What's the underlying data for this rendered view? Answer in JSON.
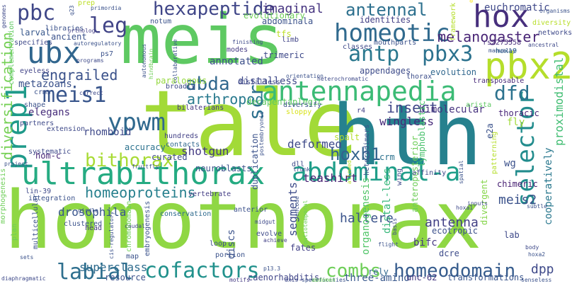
{
  "words": [
    {
      "text": "homothorax",
      "color": "#8fd744"
    },
    {
      "text": "tale",
      "color": "#a2da37"
    },
    {
      "text": "meis",
      "color": "#5ec962"
    },
    {
      "text": "hth",
      "color": "#26818e"
    },
    {
      "text": "ultrabithorax",
      "color": "#25ab82"
    },
    {
      "text": "antennapedia",
      "color": "#3bbb75"
    },
    {
      "text": "pbx2",
      "color": "#b5de2b"
    },
    {
      "text": "hox",
      "color": "#472f7d"
    },
    {
      "text": "ubx",
      "color": "#31668e"
    },
    {
      "text": "homeotic",
      "color": "#306a8e"
    },
    {
      "text": "abdominal-a",
      "color": "#1f9e89"
    },
    {
      "text": "selector",
      "color": "#228c8d"
    },
    {
      "text": "prep1",
      "color": "#1f9a8a"
    },
    {
      "text": "ypwm",
      "color": "#30698e"
    },
    {
      "text": "homeodomain",
      "color": "#365c8d"
    },
    {
      "text": "cofactors",
      "color": "#21918c"
    },
    {
      "text": "meis1",
      "color": "#39568c"
    },
    {
      "text": "hexapeptide",
      "color": "#404688"
    },
    {
      "text": "pbc",
      "color": "#3f4788"
    },
    {
      "text": "antp",
      "color": "#2a788e"
    },
    {
      "text": "pbx3",
      "color": "#2c728e"
    },
    {
      "text": "antennal",
      "color": "#2d708e"
    },
    {
      "text": "bithorax",
      "color": "#a8db34"
    },
    {
      "text": "combs",
      "color": "#6ece58"
    },
    {
      "text": "labial",
      "color": "#2e6f8e"
    },
    {
      "text": "leg",
      "color": "#414487"
    },
    {
      "text": "dfd",
      "color": "#2c728e"
    },
    {
      "text": "abda",
      "color": "#31688e"
    },
    {
      "text": "scr",
      "color": "#2d708e"
    },
    {
      "text": "hoxb1",
      "color": "#33638d"
    },
    {
      "text": "engrailed",
      "color": "#3b528b"
    },
    {
      "text": "homeoproteins",
      "color": "#27808e"
    },
    {
      "text": "arthropod",
      "color": "#297a8e"
    },
    {
      "text": "diversification",
      "color": "#75d054"
    },
    {
      "text": "insect",
      "color": "#404688"
    },
    {
      "text": "melanogaster",
      "color": "#482475"
    },
    {
      "text": "meis2",
      "color": "#3b528b"
    },
    {
      "text": "imaginal",
      "color": "#463480"
    },
    {
      "text": "evolutionary",
      "color": "#fde725"
    },
    {
      "text": "euchromatic",
      "color": "#3f4889"
    },
    {
      "text": "proximodistal",
      "color": "#40bd72"
    },
    {
      "text": "dpp",
      "color": "#3e4989"
    },
    {
      "text": "superclass",
      "color": "#2f6c8e"
    },
    {
      "text": "drosophila",
      "color": "#39558c"
    },
    {
      "text": "haltere",
      "color": "#3a538b"
    },
    {
      "text": "antenna",
      "color": "#424086"
    },
    {
      "text": "deformed",
      "color": "#3e4a89"
    },
    {
      "text": "wingless",
      "color": "#472a7a"
    },
    {
      "text": "teashirt",
      "color": "#482173"
    },
    {
      "text": "shotgun",
      "color": "#443a83"
    },
    {
      "text": "bimolecular",
      "color": "#46327e"
    },
    {
      "text": "distalless",
      "color": "#3e4989"
    },
    {
      "text": "segments",
      "color": "#3e4c8a"
    },
    {
      "text": "organogenesis",
      "color": "#52c569"
    },
    {
      "text": "anteroposterior",
      "color": "#6ece58"
    },
    {
      "text": "three-amino",
      "color": "#38588c"
    },
    {
      "text": "caenorhabditis",
      "color": "#404588"
    },
    {
      "text": "transformations",
      "color": "#39558c"
    },
    {
      "text": "unc-62",
      "color": "#453781"
    },
    {
      "text": "annotated",
      "color": "#3c4f8a"
    },
    {
      "text": "trimeric",
      "color": "#3e4989"
    },
    {
      "text": "appendages",
      "color": "#3e4c8a"
    },
    {
      "text": "evolution",
      "color": "#31678e"
    },
    {
      "text": "rhomboid",
      "color": "#3e4989"
    },
    {
      "text": "metazoans",
      "color": "#3b528b"
    },
    {
      "text": "elegans",
      "color": "#472d7b"
    },
    {
      "text": "distal-less",
      "color": "#35b779"
    },
    {
      "text": "bifc",
      "color": "#453882"
    },
    {
      "text": "dcre",
      "color": "#3e4c8a"
    },
    {
      "text": "lymphoblastic",
      "color": "#4ac16d"
    },
    {
      "text": "paralogous",
      "color": "#95d840"
    },
    {
      "text": "accuracy",
      "color": "#2c728e"
    },
    {
      "text": "curated",
      "color": "#3e4a89"
    },
    {
      "text": "duplication",
      "color": "#3b528b"
    },
    {
      "text": "decapentaplegic",
      "color": "#5ec962"
    },
    {
      "text": "crm",
      "color": "#2c728e"
    },
    {
      "text": "identities",
      "color": "#423f85"
    },
    {
      "text": "abdominala",
      "color": "#3b528b"
    },
    {
      "text": "thorax",
      "color": "#3d4e8a"
    },
    {
      "text": "transposable",
      "color": "#482979"
    },
    {
      "text": "rs2275558",
      "color": "#472c7a"
    },
    {
      "text": "thoracic",
      "color": "#482677"
    },
    {
      "text": "fly",
      "color": "#a0da39"
    },
    {
      "text": "wg",
      "color": "#3b518b"
    },
    {
      "text": "chimeric",
      "color": "#482173"
    },
    {
      "text": "divergent",
      "color": "#85d54a"
    },
    {
      "text": "ecotropic",
      "color": "#3c508b"
    },
    {
      "text": "cooperatively",
      "color": "#2a788e"
    },
    {
      "text": "evolutionary",
      "color": "#6ece58"
    },
    {
      "text": "diversity",
      "color": "#b8de29"
    },
    {
      "text": "hoxa9",
      "color": "#31678e"
    },
    {
      "text": "spalt",
      "color": "#b5de2b"
    },
    {
      "text": "e2a",
      "color": "#3b528b"
    },
    {
      "text": "fates",
      "color": "#424186"
    },
    {
      "text": "discs",
      "color": "#3b528b"
    },
    {
      "text": "neuroblasts",
      "color": "#3b518b"
    },
    {
      "text": "dll",
      "color": "#3e4989"
    },
    {
      "text": "hom-c",
      "color": "#482677"
    },
    {
      "text": "systematic",
      "color": "#3e4989"
    },
    {
      "text": "multicellular",
      "color": "#3b528b"
    },
    {
      "text": "clustered",
      "color": "#3b528b"
    },
    {
      "text": "extension",
      "color": "#3e4989"
    },
    {
      "text": "crms",
      "color": "#3b528b"
    },
    {
      "text": "larval",
      "color": "#38588c"
    },
    {
      "text": "ancient",
      "color": "#3b528b"
    },
    {
      "text": "tfs",
      "color": "#bddf26"
    },
    {
      "text": "ps7",
      "color": "#3b528b"
    },
    {
      "text": "limb",
      "color": "#414487"
    },
    {
      "text": "modes",
      "color": "#443983"
    },
    {
      "text": "distalless",
      "color": "#3e4989"
    },
    {
      "text": "r4",
      "color": "#424086"
    },
    {
      "text": "lab",
      "color": "#3e4989"
    },
    {
      "text": "rely",
      "color": "#31688e"
    },
    {
      "text": "resource",
      "color": "#3b528b"
    },
    {
      "text": "motifs",
      "color": "#443983"
    },
    {
      "text": "head",
      "color": "#453882"
    },
    {
      "text": "loop",
      "color": "#3e4c8a"
    },
    {
      "text": "portion",
      "color": "#3b528b"
    },
    {
      "text": "evolve",
      "color": "#3e4989"
    },
    {
      "text": "achieve",
      "color": "#424086"
    },
    {
      "text": "anterior",
      "color": "#3b518b"
    },
    {
      "text": "conservation",
      "color": "#2f6b8e"
    },
    {
      "text": "vertebrate",
      "color": "#433d84"
    },
    {
      "text": "contacts",
      "color": "#31688e"
    },
    {
      "text": "hundreds",
      "color": "#424086"
    },
    {
      "text": "bilaterians",
      "color": "#453781"
    },
    {
      "text": "broadly",
      "color": "#3e4989"
    },
    {
      "text": "shape",
      "color": "#3b528b"
    },
    {
      "text": "partners",
      "color": "#3e4a89"
    },
    {
      "text": "eyeless",
      "color": "#414487"
    },
    {
      "text": "integration",
      "color": "#3b528b"
    },
    {
      "text": "complementation",
      "color": "#5ec962"
    },
    {
      "text": "specifies",
      "color": "#3e4989"
    },
    {
      "text": "libraries",
      "color": "#3b528b"
    },
    {
      "text": "ortholog",
      "color": "#433e85"
    },
    {
      "text": "genomes",
      "color": "#3e4989"
    },
    {
      "text": "notum",
      "color": "#3b528b"
    },
    {
      "text": "prep",
      "color": "#bddf26"
    },
    {
      "text": "primordia",
      "color": "#3b528b"
    },
    {
      "text": "q23",
      "color": "#3b528b"
    },
    {
      "text": "autoregulatory",
      "color": "#3b528b"
    },
    {
      "text": "autonomous",
      "color": "#3b528b"
    },
    {
      "text": "hindbrain",
      "color": "#6ece58"
    },
    {
      "text": "collaborative",
      "color": "#3b528b"
    },
    {
      "text": "finishing",
      "color": "#3e4989"
    },
    {
      "text": "mouthparts",
      "color": "#3b528b"
    },
    {
      "text": "classes",
      "color": "#3e4989"
    },
    {
      "text": "framework",
      "color": "#b5de2b"
    },
    {
      "text": "manually",
      "color": "#3b528b"
    },
    {
      "text": "ancestral",
      "color": "#3e4989"
    },
    {
      "text": "organisms",
      "color": "#3b528b"
    },
    {
      "text": "networks",
      "color": "#3e4989"
    },
    {
      "text": "orientation",
      "color": "#3b528b"
    },
    {
      "text": "heterochromatic",
      "color": "#3e4989"
    },
    {
      "text": "arista",
      "color": "#5ec962"
    },
    {
      "text": "sloppy",
      "color": "#d8e219"
    },
    {
      "text": "diversify",
      "color": "#3b528b"
    },
    {
      "text": "fruitfly",
      "color": "#3b528b"
    },
    {
      "text": "correct",
      "color": "#3e4989"
    },
    {
      "text": "project",
      "color": "#3b528b"
    },
    {
      "text": "lin-39",
      "color": "#3e4989"
    },
    {
      "text": "plan",
      "color": "#6ece58"
    },
    {
      "text": "morphogenesis",
      "color": "#6ece58"
    },
    {
      "text": "girdle",
      "color": "#3b528b"
    },
    {
      "text": "caudal",
      "color": "#3e4989"
    },
    {
      "text": "cis-regulatory",
      "color": "#3b528b"
    },
    {
      "text": "embryogenesis",
      "color": "#3b528b"
    },
    {
      "text": "chromodomain",
      "color": "#6ece58"
    },
    {
      "text": "map",
      "color": "#3b528b"
    },
    {
      "text": "midgut",
      "color": "#3e4989"
    },
    {
      "text": "encode",
      "color": "#3b528b"
    },
    {
      "text": "trunk",
      "color": "#3e4989"
    },
    {
      "text": "heterodimers",
      "color": "#3b528b"
    },
    {
      "text": "allowed",
      "color": "#b5de2b"
    },
    {
      "text": "affinity",
      "color": "#3e4989"
    },
    {
      "text": "spatial",
      "color": "#3b528b"
    },
    {
      "text": "patterning",
      "color": "#b5de2b"
    },
    {
      "text": "inputs",
      "color": "#3e4989"
    },
    {
      "text": "subtle",
      "color": "#3b528b"
    },
    {
      "text": "basis",
      "color": "#3e4989"
    },
    {
      "text": "flight",
      "color": "#3b528b"
    },
    {
      "text": "body",
      "color": "#3e4989"
    },
    {
      "text": "hoxa2",
      "color": "#3b528b"
    },
    {
      "text": "hoxa1",
      "color": "#3e4989"
    },
    {
      "text": "p13.3",
      "color": "#3b528b"
    },
    {
      "text": "axis",
      "color": "#3e4989"
    },
    {
      "text": "specificities",
      "color": "#3b528b"
    },
    {
      "text": "spatiotemporal",
      "color": "#6ece58"
    },
    {
      "text": "senseless",
      "color": "#3b528b"
    },
    {
      "text": "diaphragmatic",
      "color": "#3e4989"
    },
    {
      "text": "sets",
      "color": "#3b528b"
    },
    {
      "text": "programs",
      "color": "#3e4989"
    },
    {
      "text": "postembryonic",
      "color": "#3b528b"
    },
    {
      "text": "abdomen",
      "color": "#6ece58"
    },
    {
      "text": "wing",
      "color": "#3e4989"
    }
  ]
}
